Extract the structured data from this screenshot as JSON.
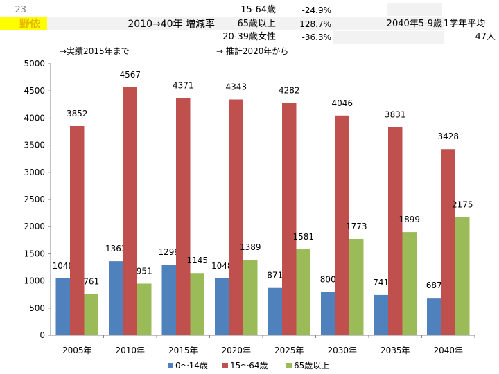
{
  "header": {
    "row_number": "23",
    "place": "野依",
    "rate_label": "2010→40年 増減率",
    "r1_label": "15-64歳",
    "r1_value": "-24.9%",
    "r2_label": "65歳以上",
    "r2_value": "128.7%",
    "r3_label": "20-39歳女性",
    "r3_value": "-36.3%",
    "kids_label": "2040年5-9歳",
    "grade_label": "1学年平均",
    "grade_value": "47人",
    "actual_note": "→実績2015年まで",
    "estimate_note": "→ 推計2020年から"
  },
  "colors": {
    "series_0_14": "#4f81bd",
    "series_15_64": "#c0504d",
    "series_65": "#9bbb59",
    "highlight": "#ffff00"
  },
  "chart_data": {
    "type": "bar",
    "categories": [
      "2005年",
      "2010年",
      "2015年",
      "2020年",
      "2025年",
      "2030年",
      "2035年",
      "2040年"
    ],
    "series": [
      {
        "name": "0～14歳",
        "values": [
          1048,
          1363,
          1299,
          1048,
          871,
          800,
          741,
          687
        ]
      },
      {
        "name": "15～64歳",
        "values": [
          3852,
          4567,
          4371,
          4343,
          4282,
          4046,
          3831,
          3428
        ]
      },
      {
        "name": "65歳以上",
        "values": [
          761,
          951,
          1145,
          1389,
          1581,
          1773,
          1899,
          2175
        ]
      }
    ],
    "ylim": [
      0,
      5000
    ],
    "yticks": [
      0,
      500,
      1000,
      1500,
      2000,
      2500,
      3000,
      3500,
      4000,
      4500,
      5000
    ],
    "legend_position": "bottom",
    "grid": false
  }
}
